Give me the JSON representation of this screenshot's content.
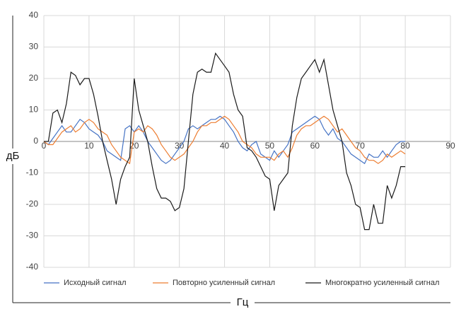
{
  "chart_data": {
    "type": "line",
    "x_label": "Гц",
    "y_label": "дБ",
    "x": [
      0,
      1,
      2,
      3,
      4,
      5,
      6,
      7,
      8,
      9,
      10,
      11,
      12,
      13,
      14,
      15,
      16,
      17,
      18,
      19,
      20,
      21,
      22,
      23,
      24,
      25,
      26,
      27,
      28,
      29,
      30,
      31,
      32,
      33,
      34,
      35,
      36,
      37,
      38,
      39,
      40,
      41,
      42,
      43,
      44,
      45,
      46,
      47,
      48,
      49,
      50,
      51,
      52,
      53,
      54,
      55,
      56,
      57,
      58,
      59,
      60,
      61,
      62,
      63,
      64,
      65,
      66,
      67,
      68,
      69,
      70,
      71,
      72,
      73,
      74,
      75,
      76,
      77,
      78,
      79,
      80
    ],
    "series": [
      {
        "name": "Исходный сигнал",
        "color": "#4472c4",
        "values": [
          0,
          -1,
          1,
          3,
          5,
          3,
          3,
          5,
          7,
          6,
          4,
          3,
          2,
          0,
          -3,
          -4,
          -5,
          -6,
          4,
          5,
          3,
          5,
          3,
          0,
          -2,
          -4,
          -6,
          -7,
          -6,
          -4,
          -2,
          0,
          4,
          5,
          4,
          5,
          6,
          7,
          7,
          8,
          7,
          5,
          3,
          0,
          -2,
          -3,
          -1,
          0,
          -4,
          -5,
          -6,
          -3,
          -5,
          -3,
          -1,
          3,
          4,
          5,
          6,
          7,
          8,
          7,
          4,
          2,
          4,
          1,
          0,
          -2,
          -4,
          -5,
          -6,
          -7,
          -4,
          -5,
          -5,
          -3,
          -5,
          -3,
          -1,
          0,
          0
        ]
      },
      {
        "name": "Повторно усиленный сигнал",
        "color": "#ed7d31",
        "values": [
          0,
          -1,
          -1,
          1,
          3,
          4,
          5,
          3,
          4,
          6,
          7,
          6,
          4,
          3,
          2,
          -1,
          -3,
          -5,
          -6,
          -7,
          3,
          4,
          3,
          5,
          4,
          2,
          -1,
          -3,
          -5,
          -6,
          -5,
          -4,
          -2,
          0,
          3,
          5,
          5,
          6,
          6,
          7,
          8,
          7,
          5,
          3,
          0,
          -1,
          -2,
          -4,
          -5,
          -5,
          -5,
          -6,
          -4,
          -3,
          -5,
          -2,
          2,
          4,
          5,
          5,
          6,
          7,
          8,
          7,
          5,
          3,
          4,
          2,
          0,
          -2,
          -3,
          -5,
          -6,
          -6,
          -7,
          -6,
          -4,
          -5,
          -4,
          -3,
          -4
        ]
      },
      {
        "name": "Многократно усиленный сигнал",
        "color": "#1a1a1a",
        "values": [
          0,
          0,
          9,
          10,
          6,
          12,
          22,
          21,
          18,
          20,
          20,
          15,
          8,
          0,
          -6,
          -12,
          -20,
          -12,
          -8,
          -5,
          20,
          10,
          5,
          0,
          -8,
          -15,
          -18,
          -18,
          -19,
          -22,
          -21,
          -15,
          0,
          15,
          22,
          23,
          22,
          22,
          28,
          26,
          24,
          22,
          15,
          10,
          8,
          -2,
          -3,
          -5,
          -8,
          -11,
          -12,
          -22,
          -14,
          -12,
          -10,
          5,
          14,
          20,
          22,
          24,
          26,
          22,
          26,
          18,
          10,
          5,
          0,
          -10,
          -14,
          -20,
          -21,
          -28,
          -28,
          -20,
          -26,
          -26,
          -14,
          -18,
          -14,
          -8,
          -8
        ]
      }
    ],
    "xlim": [
      0,
      90
    ],
    "xticks": [
      0,
      10,
      20,
      30,
      40,
      50,
      60,
      70,
      80,
      90
    ],
    "ylim": [
      -40,
      40
    ],
    "yticks": [
      -40,
      -30,
      -20,
      -10,
      0,
      10,
      20,
      30,
      40
    ],
    "grid": true,
    "legend": "bottom"
  }
}
